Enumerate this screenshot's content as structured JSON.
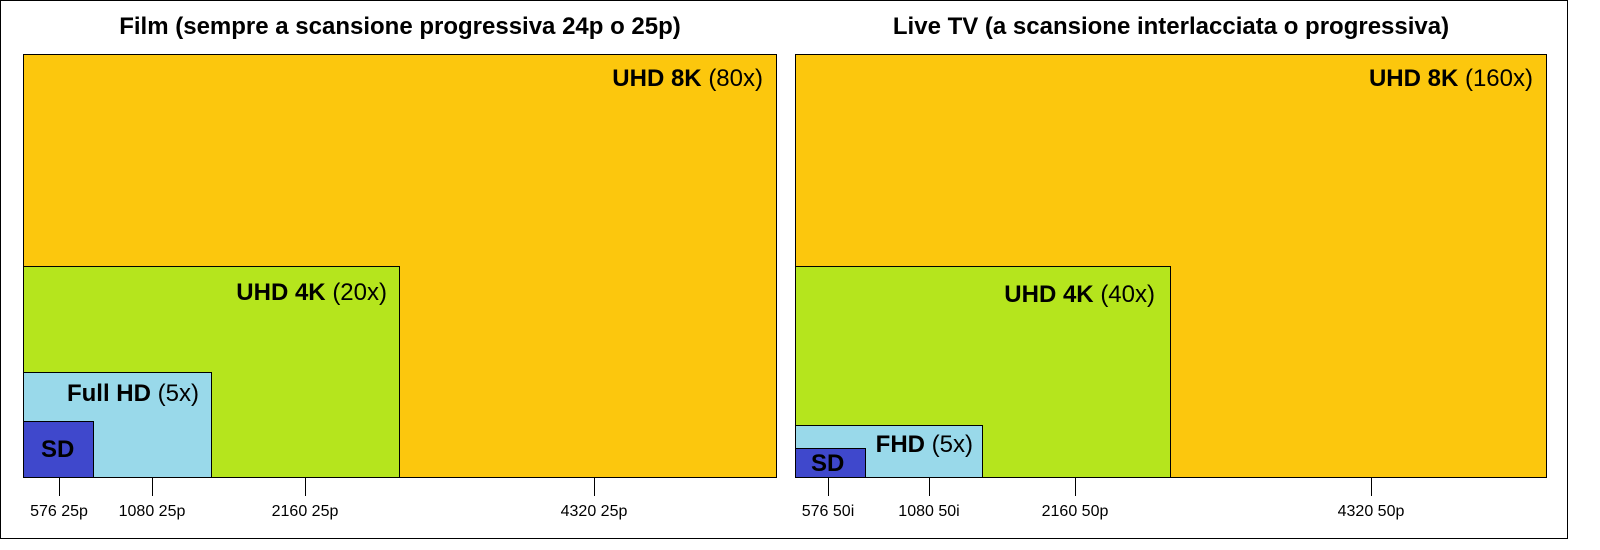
{
  "panels": [
    {
      "id": "film",
      "title": "Film (sempre a scansione progressiva 24p o 25p)",
      "blocks": [
        {
          "id": "uhd8k",
          "name": "UHD 8K",
          "mult": "(80x)",
          "color": "#FCC70D"
        },
        {
          "id": "uhd4k",
          "name": "UHD 4K",
          "mult": "(20x)",
          "color": "#B5E51D"
        },
        {
          "id": "fhd",
          "name": "Full HD",
          "mult": "(5x)",
          "color": "#99D9EA"
        },
        {
          "id": "sd",
          "name": "SD",
          "mult": "",
          "color": "#3F48CC"
        }
      ],
      "ticks": [
        "576 25p",
        "1080 25p",
        "2160 25p",
        "4320 25p"
      ]
    },
    {
      "id": "live",
      "title": "Live TV (a scansione interlacciata o progressiva)",
      "blocks": [
        {
          "id": "uhd8k",
          "name": "UHD 8K",
          "mult": "(160x)",
          "color": "#FCC70D"
        },
        {
          "id": "uhd4k",
          "name": "UHD 4K",
          "mult": "(40x)",
          "color": "#B5E51D"
        },
        {
          "id": "fhd",
          "name": "FHD",
          "mult": "(5x)",
          "color": "#99D9EA"
        },
        {
          "id": "sd",
          "name": "SD",
          "mult": "",
          "color": "#3F48CC"
        }
      ],
      "ticks": [
        "576 50i",
        "1080 50i",
        "2160 50p",
        "4320 50p"
      ]
    }
  ]
}
